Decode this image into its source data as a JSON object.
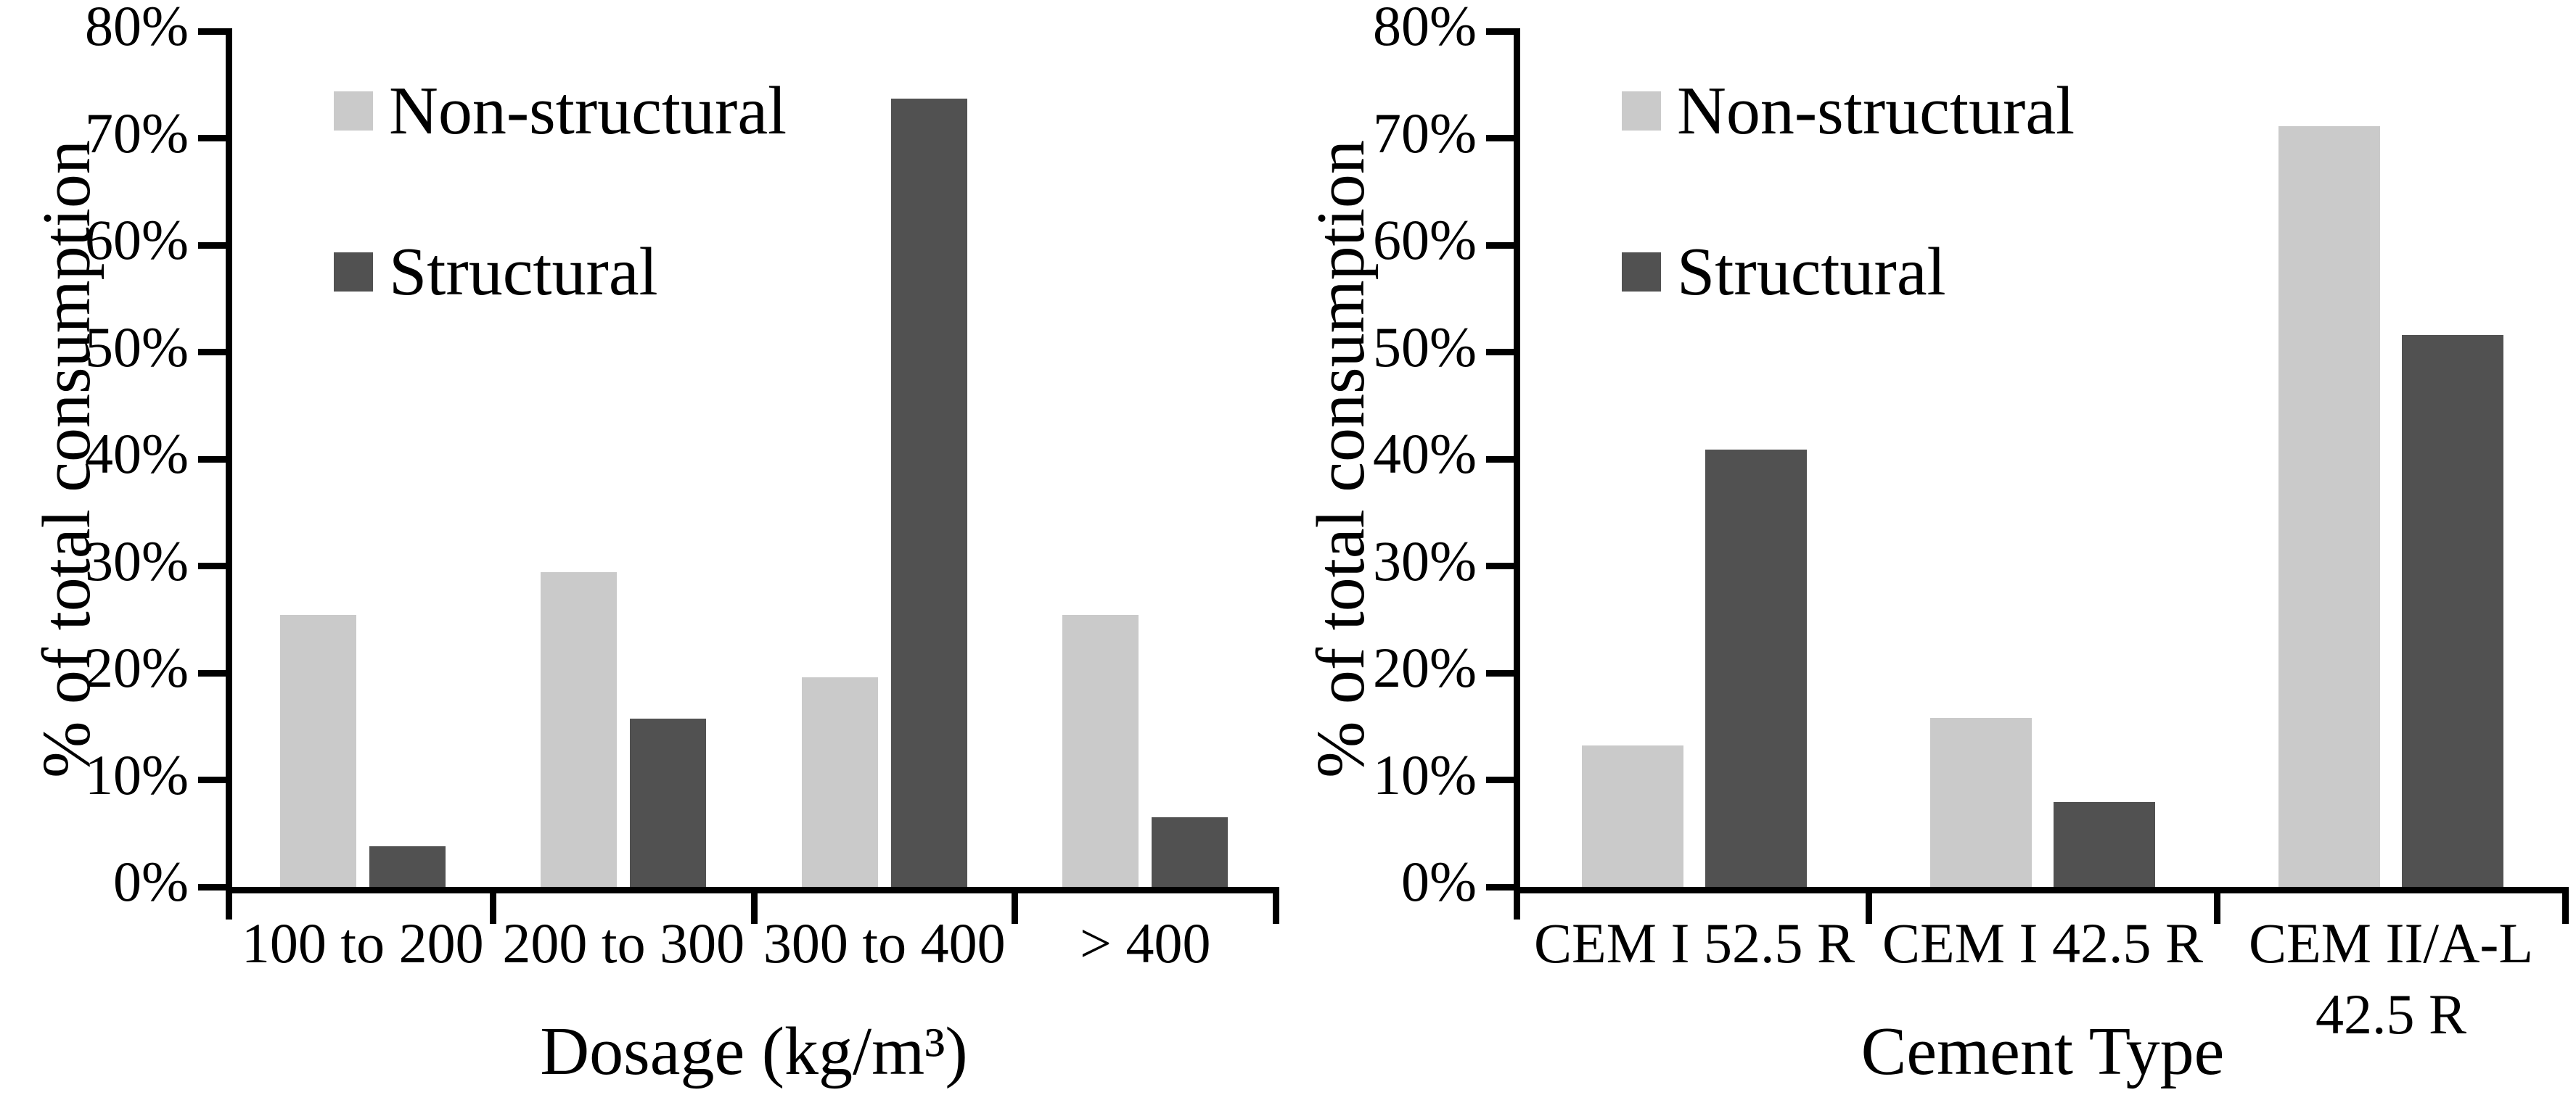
{
  "figure": {
    "background": "#ffffff",
    "text_color": "#000000",
    "colors": {
      "non_structural": "#cacaca",
      "structural": "#515151",
      "axis": "#000000"
    }
  },
  "chart_data": [
    {
      "type": "bar",
      "title": "",
      "xlabel": "Dosage (kg/m³)",
      "ylabel": "% of total consumption",
      "ylim": [
        0,
        80
      ],
      "ytick_step": 10,
      "ytick_labels": [
        "0%",
        "10%",
        "20%",
        "30%",
        "40%",
        "50%",
        "60%",
        "70%",
        "80%"
      ],
      "grid": false,
      "legend_position": "upper-left-inside",
      "categories": [
        "100 to 200",
        "200 to 300",
        "300 to 400",
        "> 400"
      ],
      "category_display_lines": [
        [
          "100 to 200"
        ],
        [
          "200 to 300"
        ],
        [
          "300 to 400"
        ],
        [
          "> 400"
        ]
      ],
      "series": [
        {
          "name": "Non-structural",
          "color_key": "non_structural",
          "values": [
            25.4,
            29.4,
            19.6,
            25.4
          ]
        },
        {
          "name": "Structural",
          "color_key": "structural",
          "values": [
            3.8,
            15.7,
            73.7,
            6.5
          ]
        }
      ]
    },
    {
      "type": "bar",
      "title": "",
      "xlabel": "Cement Type",
      "ylabel": "% of total consumption",
      "ylim": [
        0,
        80
      ],
      "ytick_step": 10,
      "ytick_labels": [
        "0%",
        "10%",
        "20%",
        "30%",
        "40%",
        "50%",
        "60%",
        "70%",
        "80%"
      ],
      "grid": false,
      "legend_position": "upper-left-inside",
      "categories": [
        "CEM I 52.5 R",
        "CEM I 42.5 R",
        "CEM II/A-L 42.5 R"
      ],
      "category_display_lines": [
        [
          "CEM I 52.5 R"
        ],
        [
          "CEM I 42.5 R"
        ],
        [
          "CEM II/A-L",
          "42.5 R"
        ]
      ],
      "series": [
        {
          "name": "Non-structural",
          "color_key": "non_structural",
          "values": [
            13.2,
            15.8,
            71.1
          ]
        },
        {
          "name": "Structural",
          "color_key": "structural",
          "values": [
            40.9,
            7.9,
            51.6
          ]
        }
      ]
    }
  ]
}
